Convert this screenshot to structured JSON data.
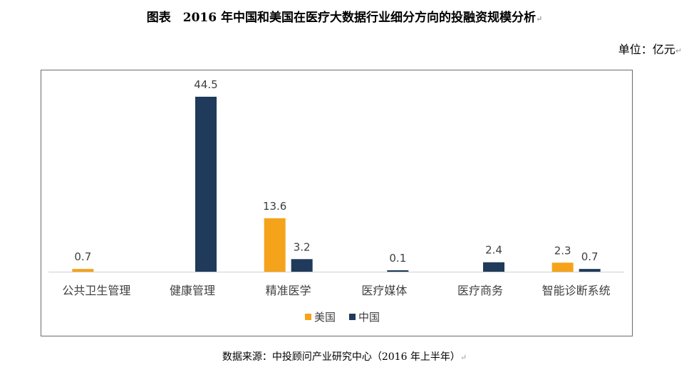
{
  "title": "图表　2016 年中国和美国在医疗大数据行业细分方向的投融资规模分析",
  "unit": "单位：亿元",
  "source": "数据来源：中投顾问产业研究中心（2016 年上半年）",
  "colors": {
    "usa": "#F5A31A",
    "china": "#1F3A5A",
    "axis": "#cfcfcf",
    "label": "#404040"
  },
  "chart_data": {
    "type": "bar",
    "title": "",
    "xlabel": "",
    "ylabel": "",
    "categories": [
      "公共卫生管理",
      "健康管理",
      "精准医学",
      "医疗媒体",
      "医疗商务",
      "智能诊断系统"
    ],
    "series": [
      {
        "name": "美国",
        "values": [
          0.7,
          null,
          13.6,
          null,
          null,
          2.3
        ]
      },
      {
        "name": "中国",
        "values": [
          null,
          44.5,
          3.2,
          0.1,
          2.4,
          0.7
        ]
      }
    ],
    "ylim": [
      0,
      44.5
    ],
    "grid": false,
    "legend": "bottom-center",
    "data_labels": true
  }
}
